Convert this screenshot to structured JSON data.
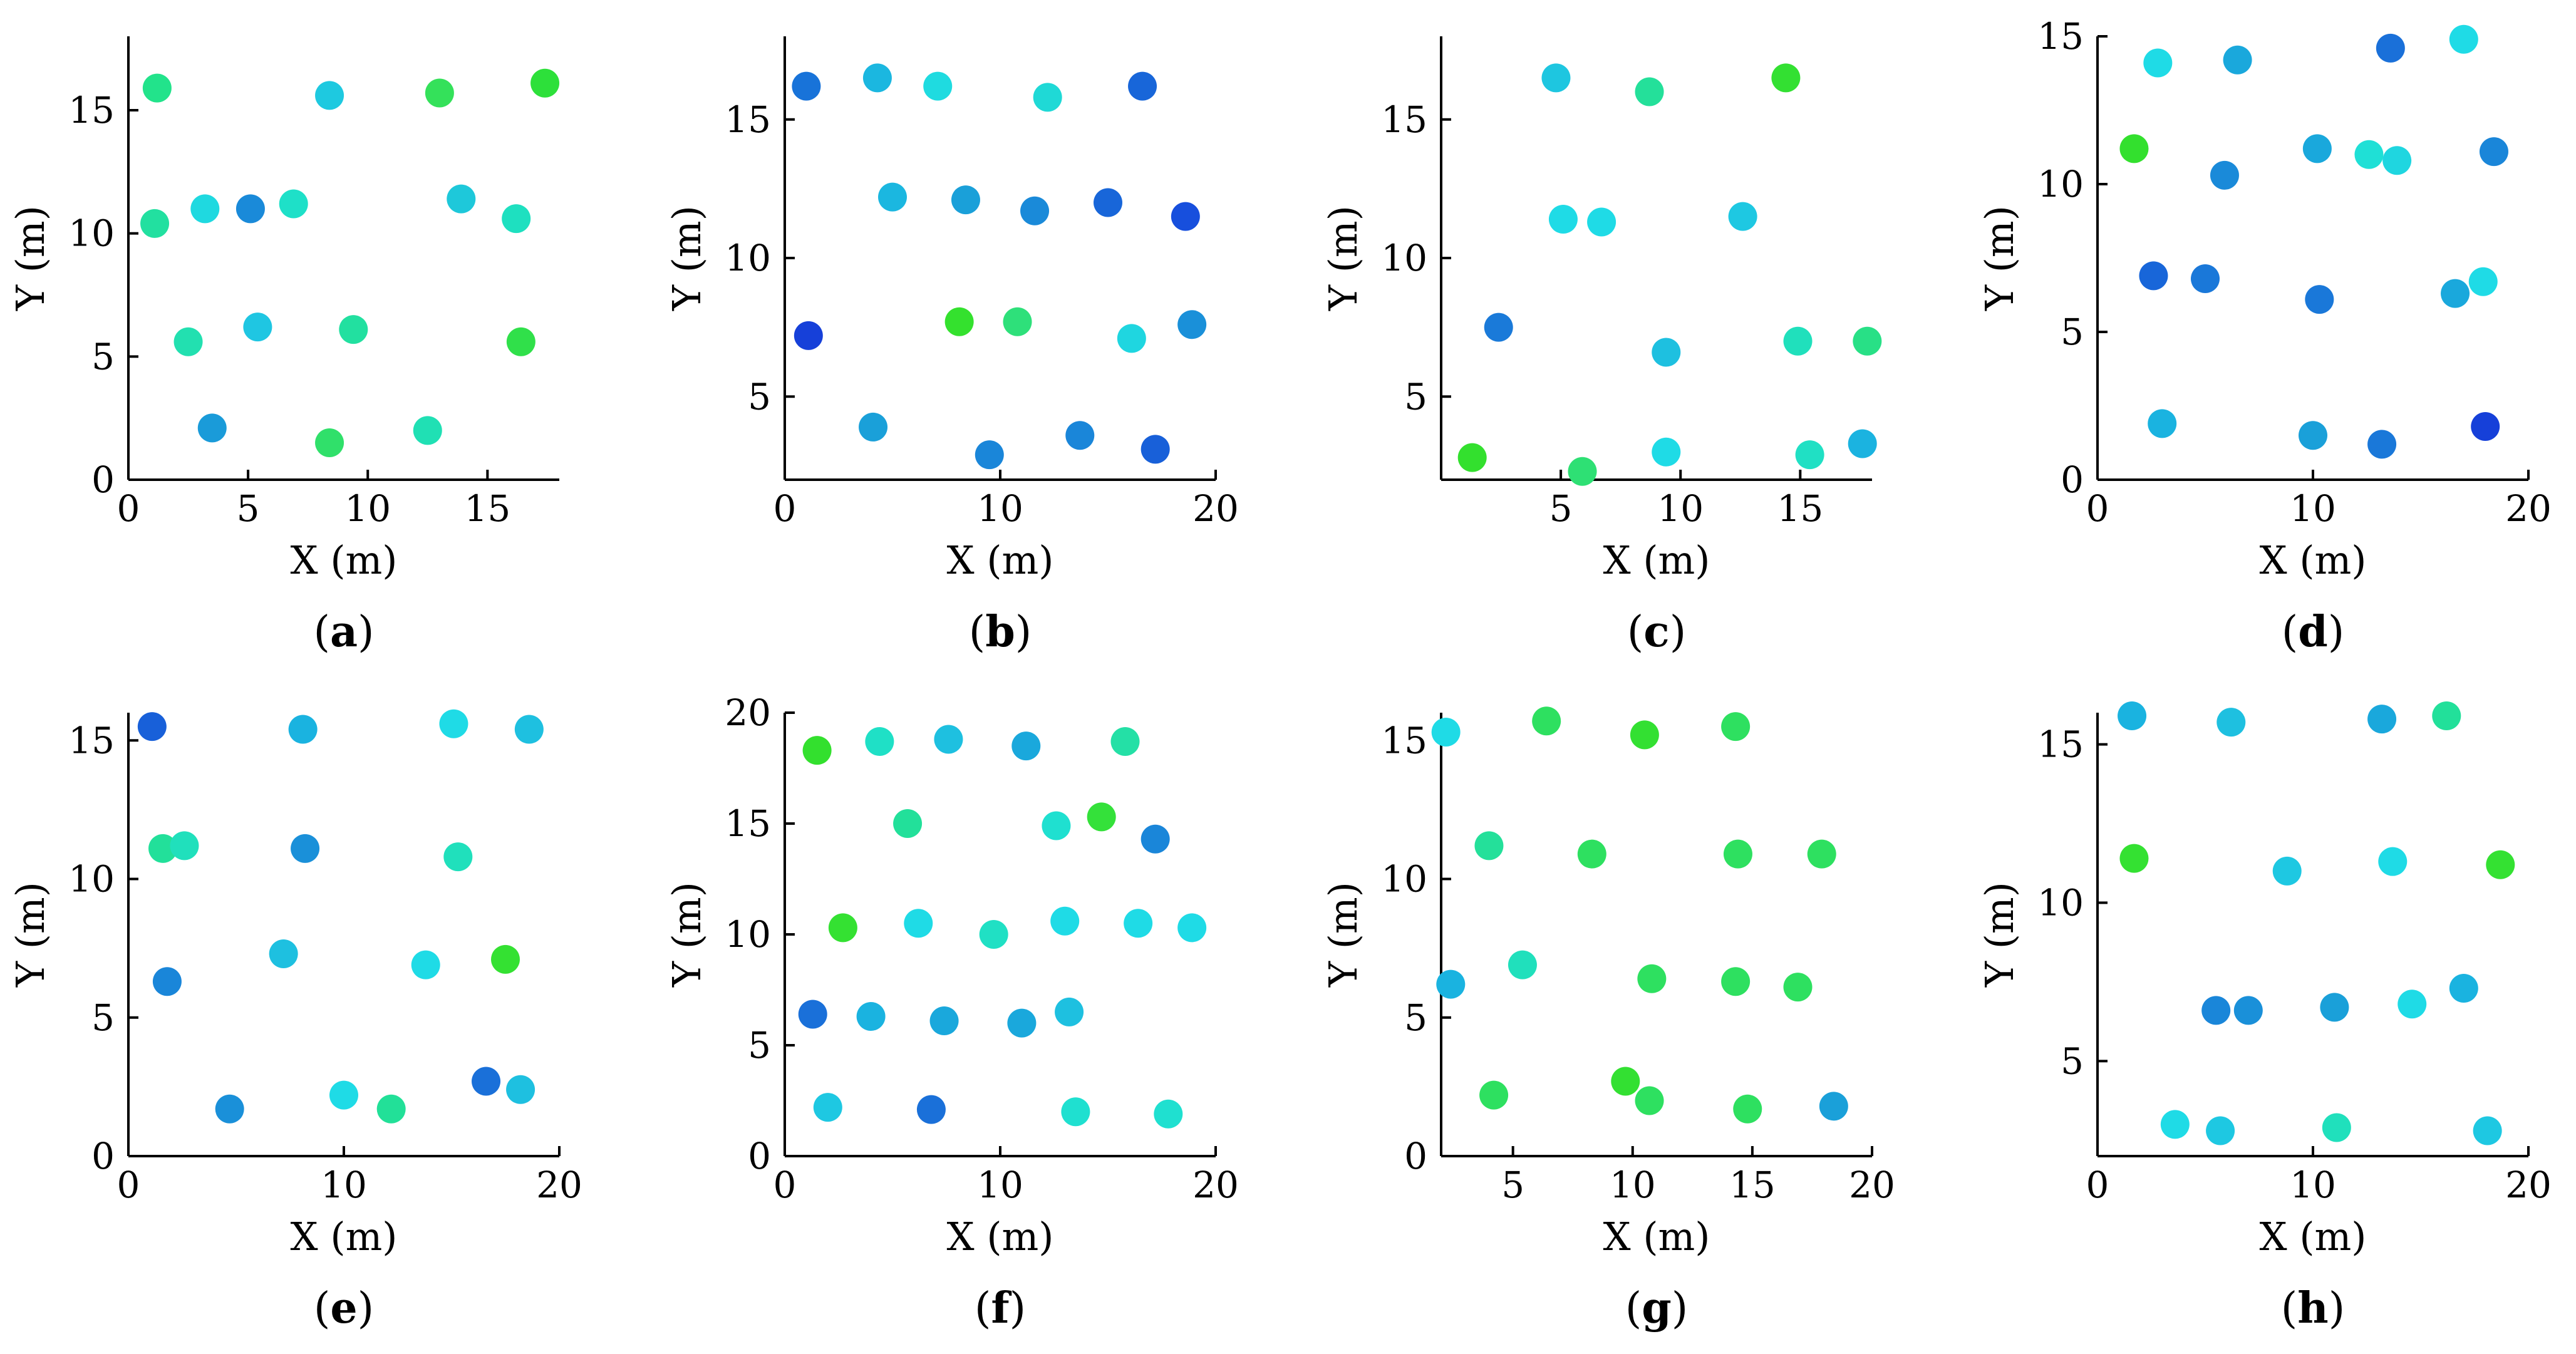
{
  "chart_data": [
    {
      "panel": "a",
      "type": "scatter",
      "xlabel": "X (m)",
      "ylabel": "Y (m)",
      "xlim": [
        0,
        18
      ],
      "ylim": [
        0,
        18
      ],
      "xticks": [
        0,
        5,
        10,
        15
      ],
      "yticks": [
        0,
        5,
        10,
        15
      ],
      "points": [
        {
          "x": 1.2,
          "y": 15.9,
          "color": "#22e38b"
        },
        {
          "x": 8.4,
          "y": 15.6,
          "color": "#1ec9e0"
        },
        {
          "x": 13.0,
          "y": 15.7,
          "color": "#34e15a"
        },
        {
          "x": 17.4,
          "y": 16.1,
          "color": "#2de03a"
        },
        {
          "x": 1.1,
          "y": 10.4,
          "color": "#22e0a0"
        },
        {
          "x": 3.2,
          "y": 11.0,
          "color": "#1fd9e0"
        },
        {
          "x": 5.1,
          "y": 11.0,
          "color": "#1a8ad9"
        },
        {
          "x": 6.9,
          "y": 11.2,
          "color": "#1ee0c8"
        },
        {
          "x": 13.9,
          "y": 11.4,
          "color": "#1ec8da"
        },
        {
          "x": 16.2,
          "y": 10.6,
          "color": "#1ee0c0"
        },
        {
          "x": 2.5,
          "y": 5.6,
          "color": "#22e0b0"
        },
        {
          "x": 5.4,
          "y": 6.2,
          "color": "#1fc6e2"
        },
        {
          "x": 9.4,
          "y": 6.1,
          "color": "#22e0a0"
        },
        {
          "x": 16.4,
          "y": 5.6,
          "color": "#30e04a"
        },
        {
          "x": 3.5,
          "y": 2.1,
          "color": "#1a9bd9"
        },
        {
          "x": 8.4,
          "y": 1.5,
          "color": "#30e06a"
        },
        {
          "x": 12.5,
          "y": 2.0,
          "color": "#20e0b4"
        }
      ]
    },
    {
      "panel": "b",
      "type": "scatter",
      "xlabel": "X (m)",
      "ylabel": "Y (m)",
      "xlim": [
        0,
        20
      ],
      "ylim": [
        2,
        18
      ],
      "xticks": [
        0,
        10,
        20
      ],
      "yticks": [
        5,
        10,
        15
      ],
      "points": [
        {
          "x": 1.0,
          "y": 16.2,
          "color": "#1873d9"
        },
        {
          "x": 4.3,
          "y": 16.5,
          "color": "#1bb7e0"
        },
        {
          "x": 7.1,
          "y": 16.2,
          "color": "#1fdbe0"
        },
        {
          "x": 12.2,
          "y": 15.8,
          "color": "#1fd9d6"
        },
        {
          "x": 16.6,
          "y": 16.2,
          "color": "#1866d9"
        },
        {
          "x": 5.0,
          "y": 12.2,
          "color": "#1bb7e0"
        },
        {
          "x": 8.4,
          "y": 12.1,
          "color": "#1aa0d9"
        },
        {
          "x": 11.6,
          "y": 11.7,
          "color": "#1a8ad9"
        },
        {
          "x": 15.0,
          "y": 12.0,
          "color": "#1866d9"
        },
        {
          "x": 18.6,
          "y": 11.5,
          "color": "#174fdd"
        },
        {
          "x": 1.1,
          "y": 7.2,
          "color": "#1640d9"
        },
        {
          "x": 8.1,
          "y": 7.7,
          "color": "#34e12e"
        },
        {
          "x": 10.8,
          "y": 7.7,
          "color": "#2ee07a"
        },
        {
          "x": 16.1,
          "y": 7.1,
          "color": "#1fd6e0"
        },
        {
          "x": 18.9,
          "y": 7.6,
          "color": "#1a90d9"
        },
        {
          "x": 4.1,
          "y": 3.9,
          "color": "#1aa0d9"
        },
        {
          "x": 9.5,
          "y": 2.9,
          "color": "#1a86d9"
        },
        {
          "x": 13.7,
          "y": 3.6,
          "color": "#1a86d9"
        },
        {
          "x": 17.2,
          "y": 3.1,
          "color": "#1860d9"
        }
      ]
    },
    {
      "panel": "c",
      "type": "scatter",
      "xlabel": "X (m)",
      "ylabel": "Y (m)",
      "xlim": [
        0,
        18
      ],
      "ylim": [
        2,
        18
      ],
      "xticks": [
        5,
        10,
        15
      ],
      "yticks": [
        5,
        10,
        15
      ],
      "points": [
        {
          "x": 4.8,
          "y": 16.5,
          "color": "#1ec6e0"
        },
        {
          "x": 8.7,
          "y": 16.0,
          "color": "#24e09a"
        },
        {
          "x": 14.4,
          "y": 16.5,
          "color": "#33e032"
        },
        {
          "x": 5.1,
          "y": 11.4,
          "color": "#1fdbe6"
        },
        {
          "x": 6.7,
          "y": 11.3,
          "color": "#1fdbe6"
        },
        {
          "x": 12.6,
          "y": 11.5,
          "color": "#1ec8e2"
        },
        {
          "x": 2.4,
          "y": 7.5,
          "color": "#1a7ad9"
        },
        {
          "x": 9.4,
          "y": 6.6,
          "color": "#1ec0e0"
        },
        {
          "x": 14.9,
          "y": 7.0,
          "color": "#20e0bc"
        },
        {
          "x": 17.8,
          "y": 7.0,
          "color": "#28e086"
        },
        {
          "x": 1.3,
          "y": 2.8,
          "color": "#33e02e"
        },
        {
          "x": 5.9,
          "y": 2.3,
          "color": "#2ee074"
        },
        {
          "x": 9.4,
          "y": 3.0,
          "color": "#1fdbe6"
        },
        {
          "x": 15.4,
          "y": 2.9,
          "color": "#20e0c4"
        },
        {
          "x": 17.6,
          "y": 3.3,
          "color": "#1bb3e0"
        }
      ]
    },
    {
      "panel": "d",
      "type": "scatter",
      "xlabel": "X (m)",
      "ylabel": "Y (m)",
      "xlim": [
        0,
        20
      ],
      "ylim": [
        0,
        15
      ],
      "xticks": [
        0,
        10,
        20
      ],
      "yticks": [
        0,
        5,
        10,
        15
      ],
      "points": [
        {
          "x": 2.8,
          "y": 14.1,
          "color": "#1fdbe6"
        },
        {
          "x": 6.5,
          "y": 14.2,
          "color": "#1aa8dc"
        },
        {
          "x": 13.6,
          "y": 14.6,
          "color": "#1a70d9"
        },
        {
          "x": 17.0,
          "y": 14.9,
          "color": "#1fdbe6"
        },
        {
          "x": 1.7,
          "y": 11.2,
          "color": "#33e02e"
        },
        {
          "x": 5.9,
          "y": 10.3,
          "color": "#1a8ad9"
        },
        {
          "x": 10.2,
          "y": 11.2,
          "color": "#1aa8dc"
        },
        {
          "x": 12.6,
          "y": 11.0,
          "color": "#1fe0d6"
        },
        {
          "x": 13.9,
          "y": 10.8,
          "color": "#1fd6e0"
        },
        {
          "x": 18.4,
          "y": 11.1,
          "color": "#1a86d9"
        },
        {
          "x": 2.6,
          "y": 6.9,
          "color": "#1866d9"
        },
        {
          "x": 5.0,
          "y": 6.8,
          "color": "#1a78d9"
        },
        {
          "x": 10.3,
          "y": 6.1,
          "color": "#1a78d9"
        },
        {
          "x": 16.6,
          "y": 6.3,
          "color": "#1aa8dc"
        },
        {
          "x": 17.9,
          "y": 6.7,
          "color": "#1fdbe6"
        },
        {
          "x": 3.0,
          "y": 1.9,
          "color": "#1ab3e0"
        },
        {
          "x": 10.0,
          "y": 1.5,
          "color": "#1aa0d9"
        },
        {
          "x": 13.2,
          "y": 1.2,
          "color": "#1a78d9"
        },
        {
          "x": 18.0,
          "y": 1.8,
          "color": "#1640d9"
        }
      ]
    },
    {
      "panel": "e",
      "type": "scatter",
      "xlabel": "X (m)",
      "ylabel": "Y (m)",
      "xlim": [
        0,
        20
      ],
      "ylim": [
        0,
        16
      ],
      "xticks": [
        0,
        10,
        20
      ],
      "yticks": [
        0,
        5,
        10,
        15
      ],
      "points": [
        {
          "x": 1.1,
          "y": 15.5,
          "color": "#1860d9"
        },
        {
          "x": 8.1,
          "y": 15.4,
          "color": "#1ab3e0"
        },
        {
          "x": 15.1,
          "y": 15.6,
          "color": "#1fdbe6"
        },
        {
          "x": 18.6,
          "y": 15.4,
          "color": "#1ec0e0"
        },
        {
          "x": 1.6,
          "y": 11.1,
          "color": "#22e09a"
        },
        {
          "x": 2.6,
          "y": 11.2,
          "color": "#20e0bc"
        },
        {
          "x": 8.2,
          "y": 11.1,
          "color": "#1a90d9"
        },
        {
          "x": 15.3,
          "y": 10.8,
          "color": "#20e0bc"
        },
        {
          "x": 1.8,
          "y": 6.3,
          "color": "#1a86d9"
        },
        {
          "x": 7.2,
          "y": 7.3,
          "color": "#1ec0e0"
        },
        {
          "x": 13.8,
          "y": 6.9,
          "color": "#1fdbe6"
        },
        {
          "x": 17.5,
          "y": 7.1,
          "color": "#34e132"
        },
        {
          "x": 4.7,
          "y": 1.7,
          "color": "#1a90d9"
        },
        {
          "x": 10.0,
          "y": 2.2,
          "color": "#1fdbe6"
        },
        {
          "x": 12.2,
          "y": 1.7,
          "color": "#22e098"
        },
        {
          "x": 16.6,
          "y": 2.7,
          "color": "#1a70d9"
        },
        {
          "x": 18.2,
          "y": 2.4,
          "color": "#1ec0e0"
        }
      ]
    },
    {
      "panel": "f",
      "type": "scatter",
      "xlabel": "X (m)",
      "ylabel": "Y (m)",
      "xlim": [
        0,
        20
      ],
      "ylim": [
        0,
        20
      ],
      "xticks": [
        0,
        10,
        20
      ],
      "yticks": [
        0,
        5,
        10,
        15,
        20
      ],
      "points": [
        {
          "x": 1.5,
          "y": 18.3,
          "color": "#33e02e"
        },
        {
          "x": 4.4,
          "y": 18.7,
          "color": "#1fe0c6"
        },
        {
          "x": 7.6,
          "y": 18.8,
          "color": "#1ec0e0"
        },
        {
          "x": 11.2,
          "y": 18.5,
          "color": "#1aa8dc"
        },
        {
          "x": 15.8,
          "y": 18.7,
          "color": "#24e0a6"
        },
        {
          "x": 5.7,
          "y": 15.0,
          "color": "#22e09a"
        },
        {
          "x": 12.6,
          "y": 14.9,
          "color": "#1fe0d0"
        },
        {
          "x": 14.7,
          "y": 15.3,
          "color": "#34e13a"
        },
        {
          "x": 17.2,
          "y": 14.3,
          "color": "#1a86d9"
        },
        {
          "x": 2.7,
          "y": 10.3,
          "color": "#34e132"
        },
        {
          "x": 6.2,
          "y": 10.5,
          "color": "#1fdbe6"
        },
        {
          "x": 9.7,
          "y": 10.0,
          "color": "#20e0c4"
        },
        {
          "x": 13.0,
          "y": 10.6,
          "color": "#1fdbe6"
        },
        {
          "x": 16.4,
          "y": 10.5,
          "color": "#1fdbe6"
        },
        {
          "x": 18.9,
          "y": 10.3,
          "color": "#1fdbe6"
        },
        {
          "x": 1.3,
          "y": 6.4,
          "color": "#1a70d9"
        },
        {
          "x": 4.0,
          "y": 6.3,
          "color": "#1ab3e0"
        },
        {
          "x": 7.4,
          "y": 6.1,
          "color": "#1aa8dc"
        },
        {
          "x": 11.0,
          "y": 6.0,
          "color": "#1aa8dc"
        },
        {
          "x": 13.2,
          "y": 6.5,
          "color": "#1ec0e0"
        },
        {
          "x": 2.0,
          "y": 2.2,
          "color": "#1ec8e2"
        },
        {
          "x": 6.8,
          "y": 2.1,
          "color": "#1a70d9"
        },
        {
          "x": 13.5,
          "y": 2.0,
          "color": "#1fe0d0"
        },
        {
          "x": 17.8,
          "y": 1.9,
          "color": "#1fe0d0"
        }
      ]
    },
    {
      "panel": "g",
      "type": "scatter",
      "xlabel": "X (m)",
      "ylabel": "Y (m)",
      "xlim": [
        2,
        20
      ],
      "ylim": [
        0,
        16
      ],
      "xticks": [
        5,
        10,
        15,
        20
      ],
      "yticks": [
        0,
        5,
        10,
        15
      ],
      "points": [
        {
          "x": 2.2,
          "y": 15.3,
          "color": "#1fdbe6"
        },
        {
          "x": 6.4,
          "y": 15.7,
          "color": "#2ee060"
        },
        {
          "x": 10.5,
          "y": 15.2,
          "color": "#33e032"
        },
        {
          "x": 14.3,
          "y": 15.5,
          "color": "#2ee060"
        },
        {
          "x": 4.0,
          "y": 11.2,
          "color": "#24e09a"
        },
        {
          "x": 8.3,
          "y": 10.9,
          "color": "#2ee060"
        },
        {
          "x": 14.4,
          "y": 10.9,
          "color": "#2ee060"
        },
        {
          "x": 17.9,
          "y": 10.9,
          "color": "#2ee060"
        },
        {
          "x": 2.4,
          "y": 6.2,
          "color": "#1ab3e0"
        },
        {
          "x": 5.4,
          "y": 6.9,
          "color": "#20e0bc"
        },
        {
          "x": 10.8,
          "y": 6.4,
          "color": "#2ee060"
        },
        {
          "x": 14.3,
          "y": 6.3,
          "color": "#2ee060"
        },
        {
          "x": 16.9,
          "y": 6.1,
          "color": "#2ee060"
        },
        {
          "x": 4.2,
          "y": 2.2,
          "color": "#2ee060"
        },
        {
          "x": 9.7,
          "y": 2.7,
          "color": "#33e032"
        },
        {
          "x": 10.7,
          "y": 2.0,
          "color": "#2ee060"
        },
        {
          "x": 14.8,
          "y": 1.7,
          "color": "#2ee060"
        },
        {
          "x": 18.4,
          "y": 1.8,
          "color": "#1aa0d9"
        }
      ]
    },
    {
      "panel": "h",
      "type": "scatter",
      "xlabel": "X (m)",
      "ylabel": "Y (m)",
      "xlim": [
        0,
        20
      ],
      "ylim": [
        2,
        16
      ],
      "xticks": [
        0,
        10,
        20
      ],
      "yticks": [
        5,
        10,
        15
      ],
      "points": [
        {
          "x": 1.6,
          "y": 15.9,
          "color": "#1ab3e0"
        },
        {
          "x": 6.2,
          "y": 15.7,
          "color": "#1ec0e0"
        },
        {
          "x": 13.2,
          "y": 15.8,
          "color": "#1aa8dc"
        },
        {
          "x": 16.2,
          "y": 15.9,
          "color": "#22e09a"
        },
        {
          "x": 1.7,
          "y": 11.4,
          "color": "#34e132"
        },
        {
          "x": 8.8,
          "y": 11.0,
          "color": "#1ec8e2"
        },
        {
          "x": 13.7,
          "y": 11.3,
          "color": "#1fdbe6"
        },
        {
          "x": 18.7,
          "y": 11.2,
          "color": "#34e132"
        },
        {
          "x": 5.5,
          "y": 6.6,
          "color": "#1a86d9"
        },
        {
          "x": 7.0,
          "y": 6.6,
          "color": "#1a90d9"
        },
        {
          "x": 11.0,
          "y": 6.7,
          "color": "#1aa0d9"
        },
        {
          "x": 14.6,
          "y": 6.8,
          "color": "#1fdbe6"
        },
        {
          "x": 17.0,
          "y": 7.3,
          "color": "#1ab3e0"
        },
        {
          "x": 3.6,
          "y": 3.0,
          "color": "#1fdbe6"
        },
        {
          "x": 5.7,
          "y": 2.8,
          "color": "#1ec8e2"
        },
        {
          "x": 11.1,
          "y": 2.9,
          "color": "#20e0bc"
        },
        {
          "x": 18.1,
          "y": 2.8,
          "color": "#1ec8e2"
        }
      ]
    }
  ]
}
